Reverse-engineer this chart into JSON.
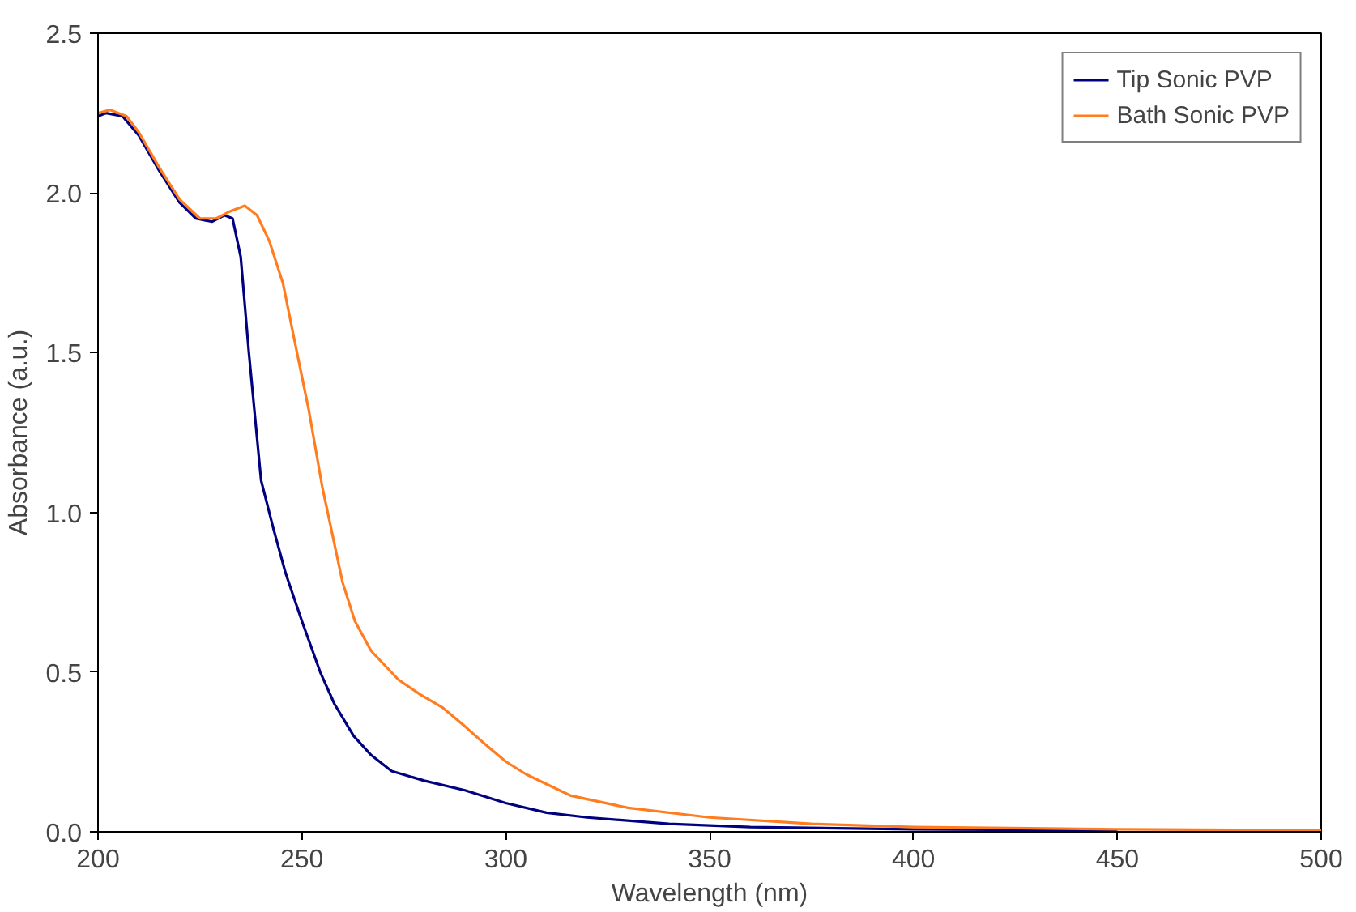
{
  "chart_data": {
    "type": "line",
    "xlabel": "Wavelength (nm)",
    "ylabel": "Absorbance (a.u.)",
    "xlim": [
      200,
      500
    ],
    "xticks": [
      200,
      250,
      300,
      350,
      400,
      450,
      500
    ],
    "ylim": [
      0,
      2.5
    ],
    "yticks": [
      {
        "value": 0,
        "label": "0.0"
      },
      {
        "value": 0.5,
        "label": "0.5"
      },
      {
        "value": 1,
        "label": "1.0"
      },
      {
        "value": 1.5,
        "label": "1.5"
      },
      {
        "value": 2,
        "label": "2.0"
      },
      {
        "value": 2.5,
        "label": "2.5"
      }
    ],
    "grid": false,
    "legend": "top right",
    "marker": "none",
    "line_style": "solid",
    "series": [
      {
        "name": "Tip Sonic PVP",
        "color": "#000080",
        "x": [
          200,
          202,
          206,
          210,
          215,
          220,
          224,
          228,
          231,
          233,
          235,
          237,
          240,
          243,
          246,
          250,
          254.5,
          258,
          262.7,
          267,
          272,
          280,
          290,
          300,
          310,
          320,
          340,
          360,
          400,
          450
        ],
        "values": [
          2.24,
          2.25,
          2.24,
          2.18,
          2.07,
          1.97,
          1.92,
          1.91,
          1.93,
          1.92,
          1.8,
          1.5,
          1.1,
          0.95,
          0.81,
          0.66,
          0.5,
          0.4,
          0.3,
          0.24,
          0.19,
          0.16,
          0.13,
          0.09,
          0.06,
          0.045,
          0.025,
          0.015,
          0.008,
          0.004
        ]
      },
      {
        "name": "Bath Sonic PVP",
        "color": "#ff7c1f",
        "x": [
          200,
          203,
          207,
          210,
          215,
          220,
          225,
          229,
          232,
          236,
          239,
          242,
          245.4,
          248,
          251.7,
          255,
          260,
          263,
          267,
          273.7,
          279,
          284.6,
          290,
          294.4,
          300,
          305,
          316,
          330,
          350,
          375,
          400,
          450,
          500
        ],
        "values": [
          2.25,
          2.26,
          2.24,
          2.19,
          2.08,
          1.98,
          1.92,
          1.92,
          1.94,
          1.96,
          1.93,
          1.85,
          1.715,
          1.55,
          1.32,
          1.08,
          0.78,
          0.66,
          0.566,
          0.476,
          0.43,
          0.388,
          0.33,
          0.28,
          0.22,
          0.18,
          0.113,
          0.075,
          0.045,
          0.025,
          0.015,
          0.008,
          0.005
        ]
      }
    ]
  }
}
